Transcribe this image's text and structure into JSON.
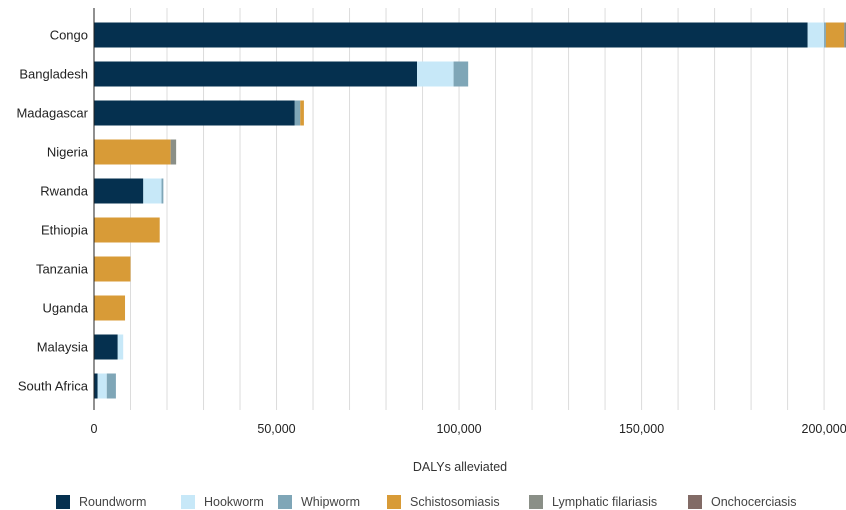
{
  "chart_data": {
    "type": "bar",
    "orientation": "horizontal",
    "stacked": true,
    "title": "",
    "xlabel": "DALYs alleviated",
    "ylabel": "",
    "xlim": [
      0,
      206000
    ],
    "xticks": [
      0,
      50000,
      100000,
      150000,
      200000
    ],
    "xtick_labels": [
      "0",
      "50,000",
      "100,000",
      "150,000",
      "200,000"
    ],
    "grid": true,
    "legend_position": "bottom",
    "categories": [
      "Congo",
      "Bangladesh",
      "Madagascar",
      "Nigeria",
      "Rwanda",
      "Ethiopia",
      "Tanzania",
      "Uganda",
      "Malaysia",
      "South Africa"
    ],
    "series": [
      {
        "name": "Roundworm",
        "color": "#05304f",
        "values": [
          195500,
          88500,
          55000,
          0,
          13500,
          0,
          0,
          0,
          6500,
          1000
        ]
      },
      {
        "name": "Hookworm",
        "color": "#c7e8f8",
        "values": [
          4500,
          10000,
          0,
          0,
          5000,
          0,
          0,
          0,
          1500,
          2500
        ]
      },
      {
        "name": "Whipworm",
        "color": "#7fa6b7",
        "values": [
          500,
          4000,
          1500,
          0,
          500,
          0,
          0,
          0,
          0,
          2500
        ]
      },
      {
        "name": "Schistosomiasis",
        "color": "#d89b37",
        "values": [
          5000,
          0,
          1000,
          21000,
          0,
          18000,
          10000,
          8500,
          0,
          0
        ]
      },
      {
        "name": "Lymphatic filariasis",
        "color": "#8a8f87",
        "values": [
          500,
          0,
          0,
          1500,
          0,
          0,
          0,
          0,
          0,
          0
        ]
      },
      {
        "name": "Onchocerciasis",
        "color": "#826b66",
        "values": [
          0,
          0,
          0,
          0,
          0,
          0,
          0,
          0,
          0,
          0
        ]
      }
    ]
  }
}
